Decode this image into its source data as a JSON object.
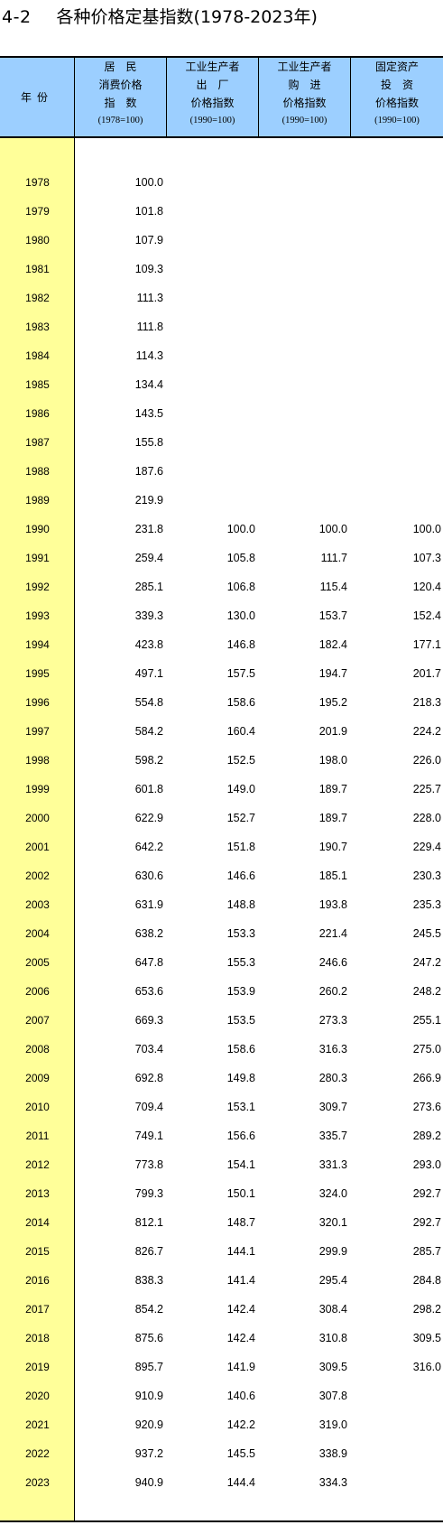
{
  "title": {
    "number": "4-2",
    "text": "各种价格定基指数(1978-2023年)"
  },
  "header": {
    "year": "年份",
    "columns": [
      {
        "lines": [
          "居　民",
          "消费价格",
          "指　数"
        ],
        "base": "(1978=100)"
      },
      {
        "lines": [
          "工业生产者",
          "出　厂",
          "价格指数"
        ],
        "base": "(1990=100)"
      },
      {
        "lines": [
          "工业生产者",
          "购　进",
          "价格指数"
        ],
        "base": "(1990=100)"
      },
      {
        "lines": [
          "固定资产",
          "投　资",
          "价格指数"
        ],
        "base": "(1990=100)"
      }
    ]
  },
  "rows": [
    [
      "1978",
      "100.0",
      "",
      "",
      ""
    ],
    [
      "1979",
      "101.8",
      "",
      "",
      ""
    ],
    [
      "1980",
      "107.9",
      "",
      "",
      ""
    ],
    [
      "1981",
      "109.3",
      "",
      "",
      ""
    ],
    [
      "1982",
      "111.3",
      "",
      "",
      ""
    ],
    [
      "1983",
      "111.8",
      "",
      "",
      ""
    ],
    [
      "1984",
      "114.3",
      "",
      "",
      ""
    ],
    [
      "1985",
      "134.4",
      "",
      "",
      ""
    ],
    [
      "1986",
      "143.5",
      "",
      "",
      ""
    ],
    [
      "1987",
      "155.8",
      "",
      "",
      ""
    ],
    [
      "1988",
      "187.6",
      "",
      "",
      ""
    ],
    [
      "1989",
      "219.9",
      "",
      "",
      ""
    ],
    [
      "1990",
      "231.8",
      "100.0",
      "100.0",
      "100.0"
    ],
    [
      "1991",
      "259.4",
      "105.8",
      "111.7",
      "107.3"
    ],
    [
      "1992",
      "285.1",
      "106.8",
      "115.4",
      "120.4"
    ],
    [
      "1993",
      "339.3",
      "130.0",
      "153.7",
      "152.4"
    ],
    [
      "1994",
      "423.8",
      "146.8",
      "182.4",
      "177.1"
    ],
    [
      "1995",
      "497.1",
      "157.5",
      "194.7",
      "201.7"
    ],
    [
      "1996",
      "554.8",
      "158.6",
      "195.2",
      "218.3"
    ],
    [
      "1997",
      "584.2",
      "160.4",
      "201.9",
      "224.2"
    ],
    [
      "1998",
      "598.2",
      "152.5",
      "198.0",
      "226.0"
    ],
    [
      "1999",
      "601.8",
      "149.0",
      "189.7",
      "225.7"
    ],
    [
      "2000",
      "622.9",
      "152.7",
      "189.7",
      "228.0"
    ],
    [
      "2001",
      "642.2",
      "151.8",
      "190.7",
      "229.4"
    ],
    [
      "2002",
      "630.6",
      "146.6",
      "185.1",
      "230.3"
    ],
    [
      "2003",
      "631.9",
      "148.8",
      "193.8",
      "235.3"
    ],
    [
      "2004",
      "638.2",
      "153.3",
      "221.4",
      "245.5"
    ],
    [
      "2005",
      "647.8",
      "155.3",
      "246.6",
      "247.2"
    ],
    [
      "2006",
      "653.6",
      "153.9",
      "260.2",
      "248.2"
    ],
    [
      "2007",
      "669.3",
      "153.5",
      "273.3",
      "255.1"
    ],
    [
      "2008",
      "703.4",
      "158.6",
      "316.3",
      "275.0"
    ],
    [
      "2009",
      "692.8",
      "149.8",
      "280.3",
      "266.9"
    ],
    [
      "2010",
      "709.4",
      "153.1",
      "309.7",
      "273.6"
    ],
    [
      "2011",
      "749.1",
      "156.6",
      "335.7",
      "289.2"
    ],
    [
      "2012",
      "773.8",
      "154.1",
      "331.3",
      "293.0"
    ],
    [
      "2013",
      "799.3",
      "150.1",
      "324.0",
      "292.7"
    ],
    [
      "2014",
      "812.1",
      "148.7",
      "320.1",
      "292.7"
    ],
    [
      "2015",
      "826.7",
      "144.1",
      "299.9",
      "285.7"
    ],
    [
      "2016",
      "838.3",
      "141.4",
      "295.4",
      "284.8"
    ],
    [
      "2017",
      "854.2",
      "142.4",
      "308.4",
      "298.2"
    ],
    [
      "2018",
      "875.6",
      "142.4",
      "310.8",
      "309.5"
    ],
    [
      "2019",
      "895.7",
      "141.9",
      "309.5",
      "316.0"
    ],
    [
      "2020",
      "910.9",
      "140.6",
      "307.8",
      ""
    ],
    [
      "2021",
      "920.9",
      "142.2",
      "319.0",
      ""
    ],
    [
      "2022",
      "937.2",
      "145.5",
      "338.9",
      ""
    ],
    [
      "2023",
      "940.9",
      "144.4",
      "334.3",
      ""
    ]
  ],
  "colors": {
    "header_bg": "#9ccfff",
    "year_column_bg": "#ffff99"
  }
}
